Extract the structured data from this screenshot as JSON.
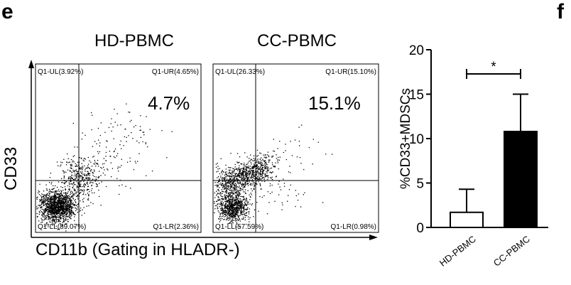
{
  "panel_e": {
    "letter": "e",
    "y_axis_label": "CD33",
    "x_axis_label": "CD11b (Gating in HLADR-)",
    "plots": [
      {
        "title": "HD-PBMC",
        "big_percent": "4.7%",
        "quadrants": {
          "ul": "Q1-UL(3.92%)",
          "ur": "Q1-UR(4.65%)",
          "ll": "Q1-LL(89.07%)",
          "lr": "Q1-LR(2.36%)"
        }
      },
      {
        "title": "CC-PBMC",
        "big_percent": "15.1%",
        "quadrants": {
          "ul": "Q1-UL(26.33%)",
          "ur": "Q1-UR(15.10%)",
          "ll": "Q1-LL(57.59%)",
          "lr": "Q1-LR(0.98%)"
        }
      }
    ]
  },
  "panel_f": {
    "letter": "f",
    "significance": "*"
  },
  "chart_data": {
    "type": "bar",
    "categories": [
      "HD-PBMC",
      "CC-PBMC"
    ],
    "values": [
      1.7,
      10.8
    ],
    "error_upper": [
      4.3,
      15.0
    ],
    "ylabel": "%CD33+MDSCs",
    "ylim": [
      0,
      20
    ],
    "yticks": [
      0,
      5,
      10,
      15,
      20
    ],
    "bar_fill": [
      "#ffffff",
      "#000000"
    ],
    "significance": "*"
  }
}
